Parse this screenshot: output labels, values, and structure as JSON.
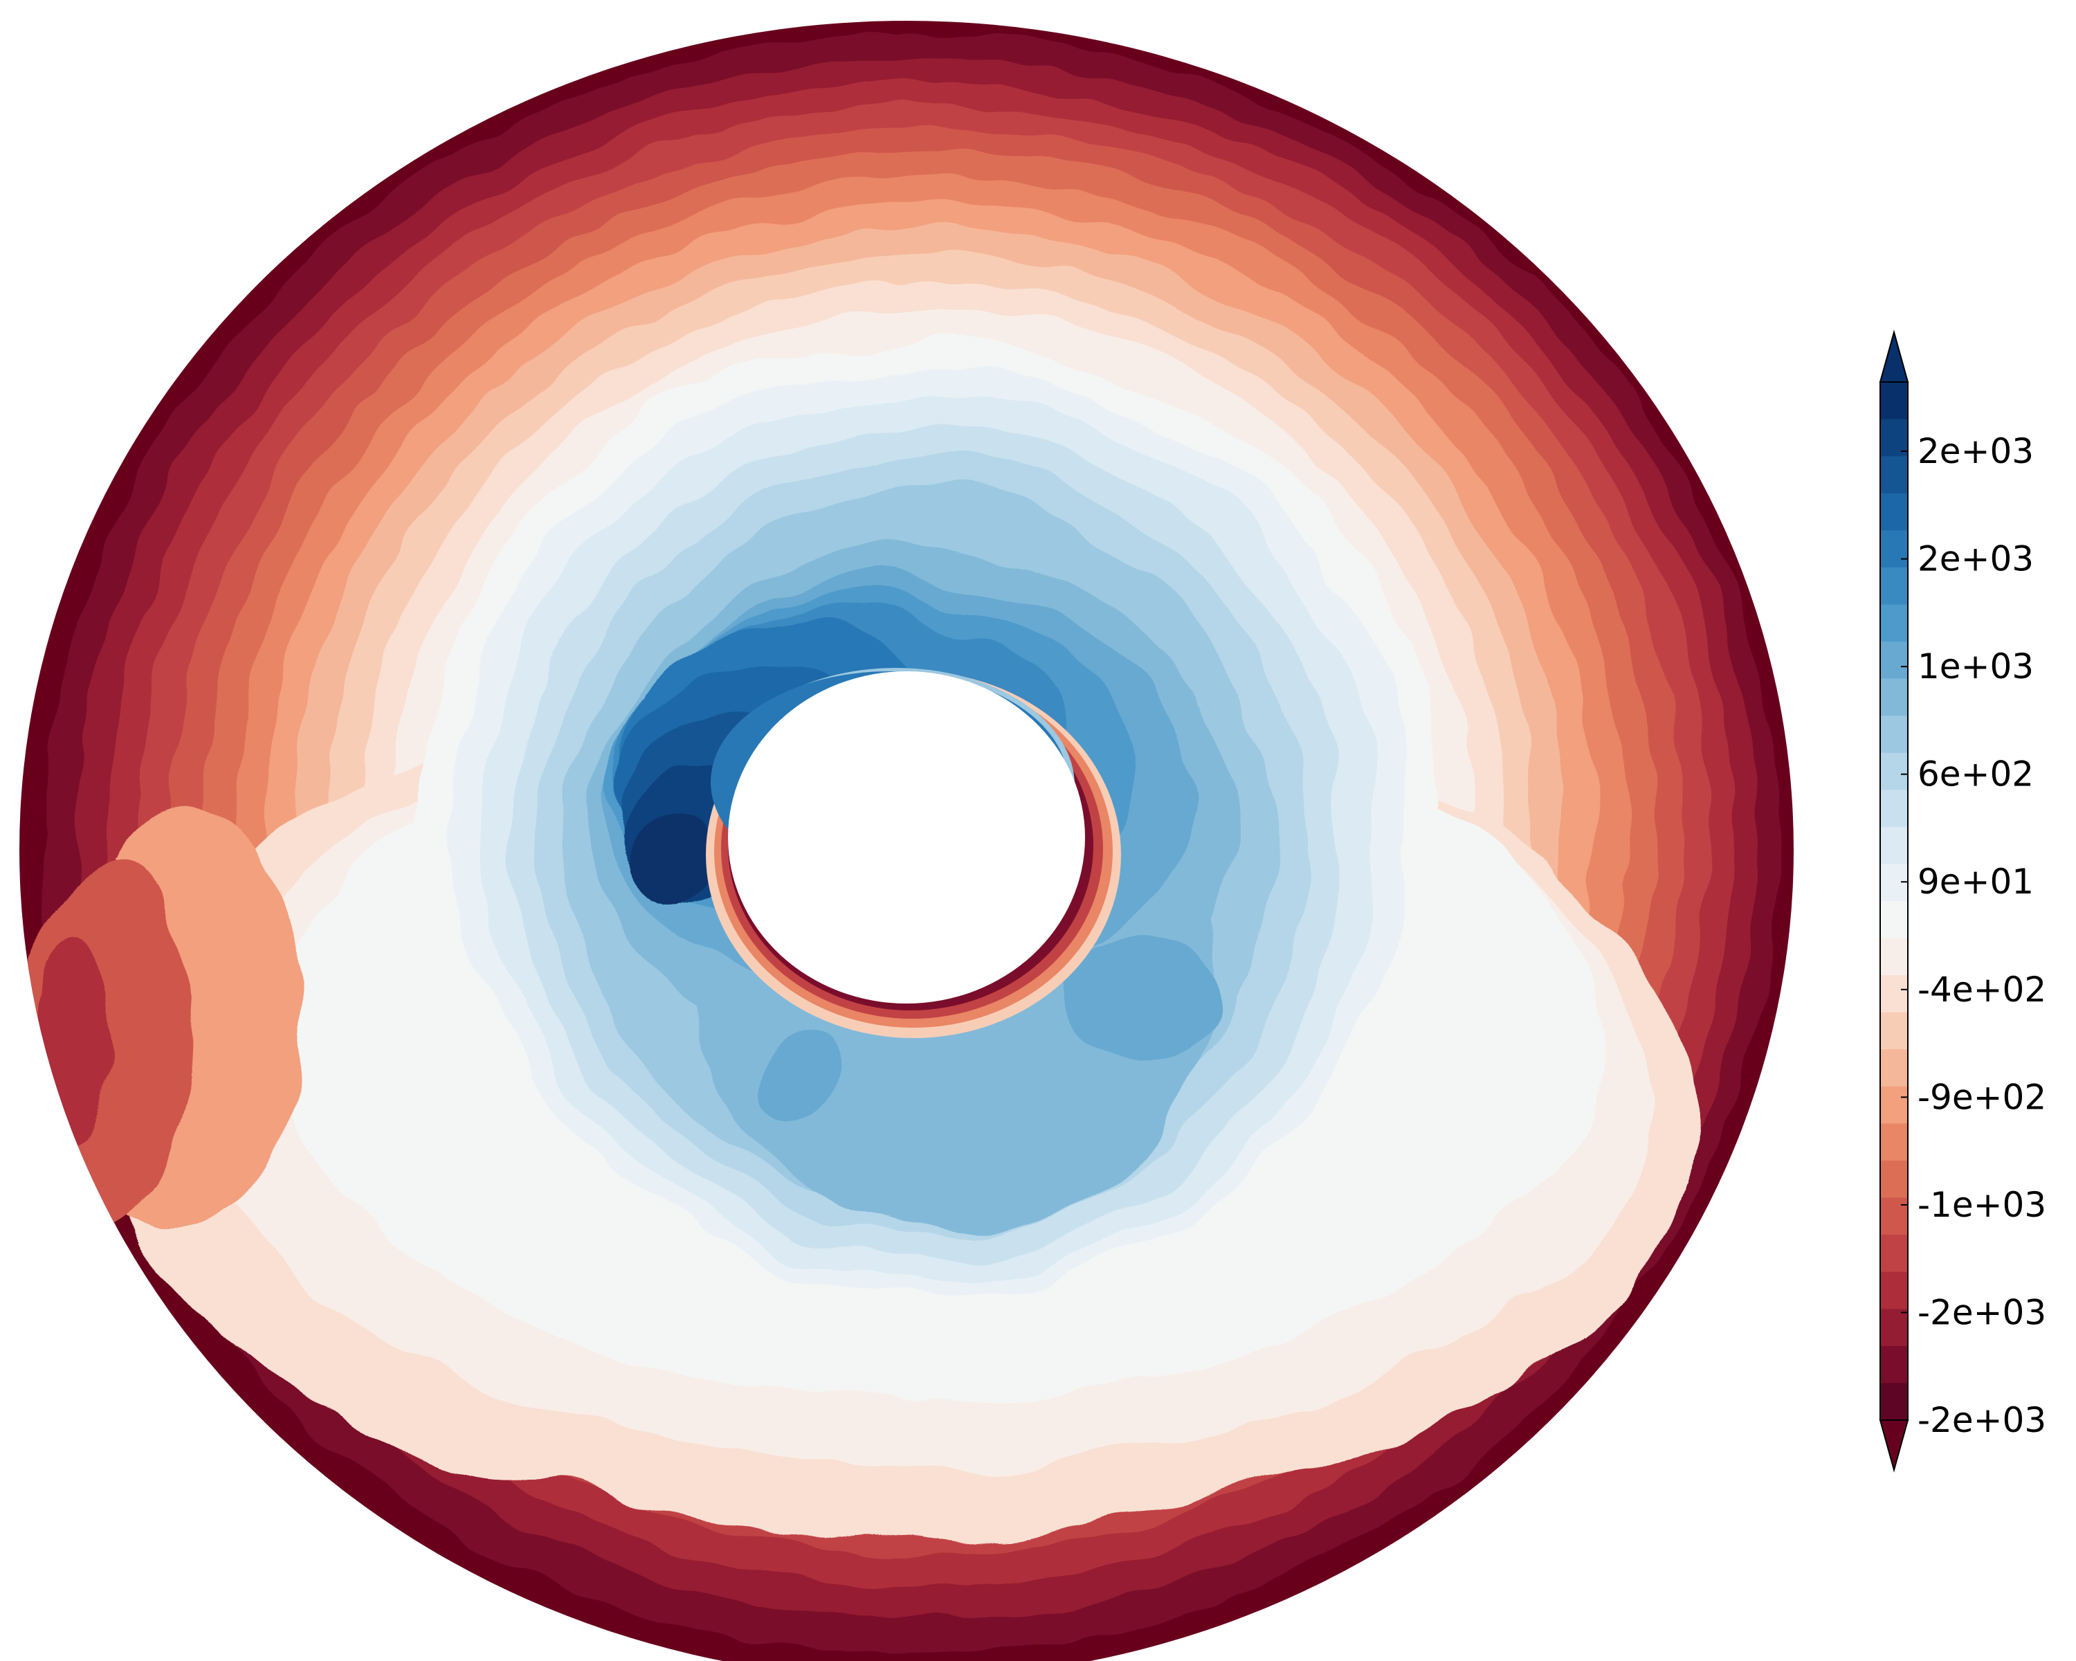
{
  "chart_data": {
    "type": "heatmap",
    "geometry": "annulus",
    "title": "",
    "xlabel": "",
    "ylabel": "",
    "colormap": "RdBu",
    "colorbar": {
      "location": "right",
      "extend": "both",
      "ticks": [
        "2e+03",
        "2e+03",
        "1e+03",
        "6e+02",
        "9e+01",
        "-4e+02",
        "-9e+02",
        "-1e+03",
        "-2e+03",
        "-2e+03"
      ],
      "levels_top_to_bottom": [
        "#08306b",
        "#0d437f",
        "#145594",
        "#1b67a8",
        "#2878b6",
        "#3a8ac2",
        "#4d9acb",
        "#67a9d1",
        "#82b9d9",
        "#9cc8e1",
        "#b4d6e8",
        "#c9e1ee",
        "#dbeaf3",
        "#eaf1f6",
        "#f4f6f6",
        "#f8eee9",
        "#f9e0d3",
        "#f8cdb6",
        "#f5b79a",
        "#f2a07e",
        "#e98665",
        "#dc6e56",
        "#cf574c",
        "#c14244",
        "#ae2d3a",
        "#951d33",
        "#7a0d2b",
        "#5e0424"
      ],
      "extend_colors": {
        "top": "#08306b",
        "bottom": "#67001f"
      }
    }
  }
}
